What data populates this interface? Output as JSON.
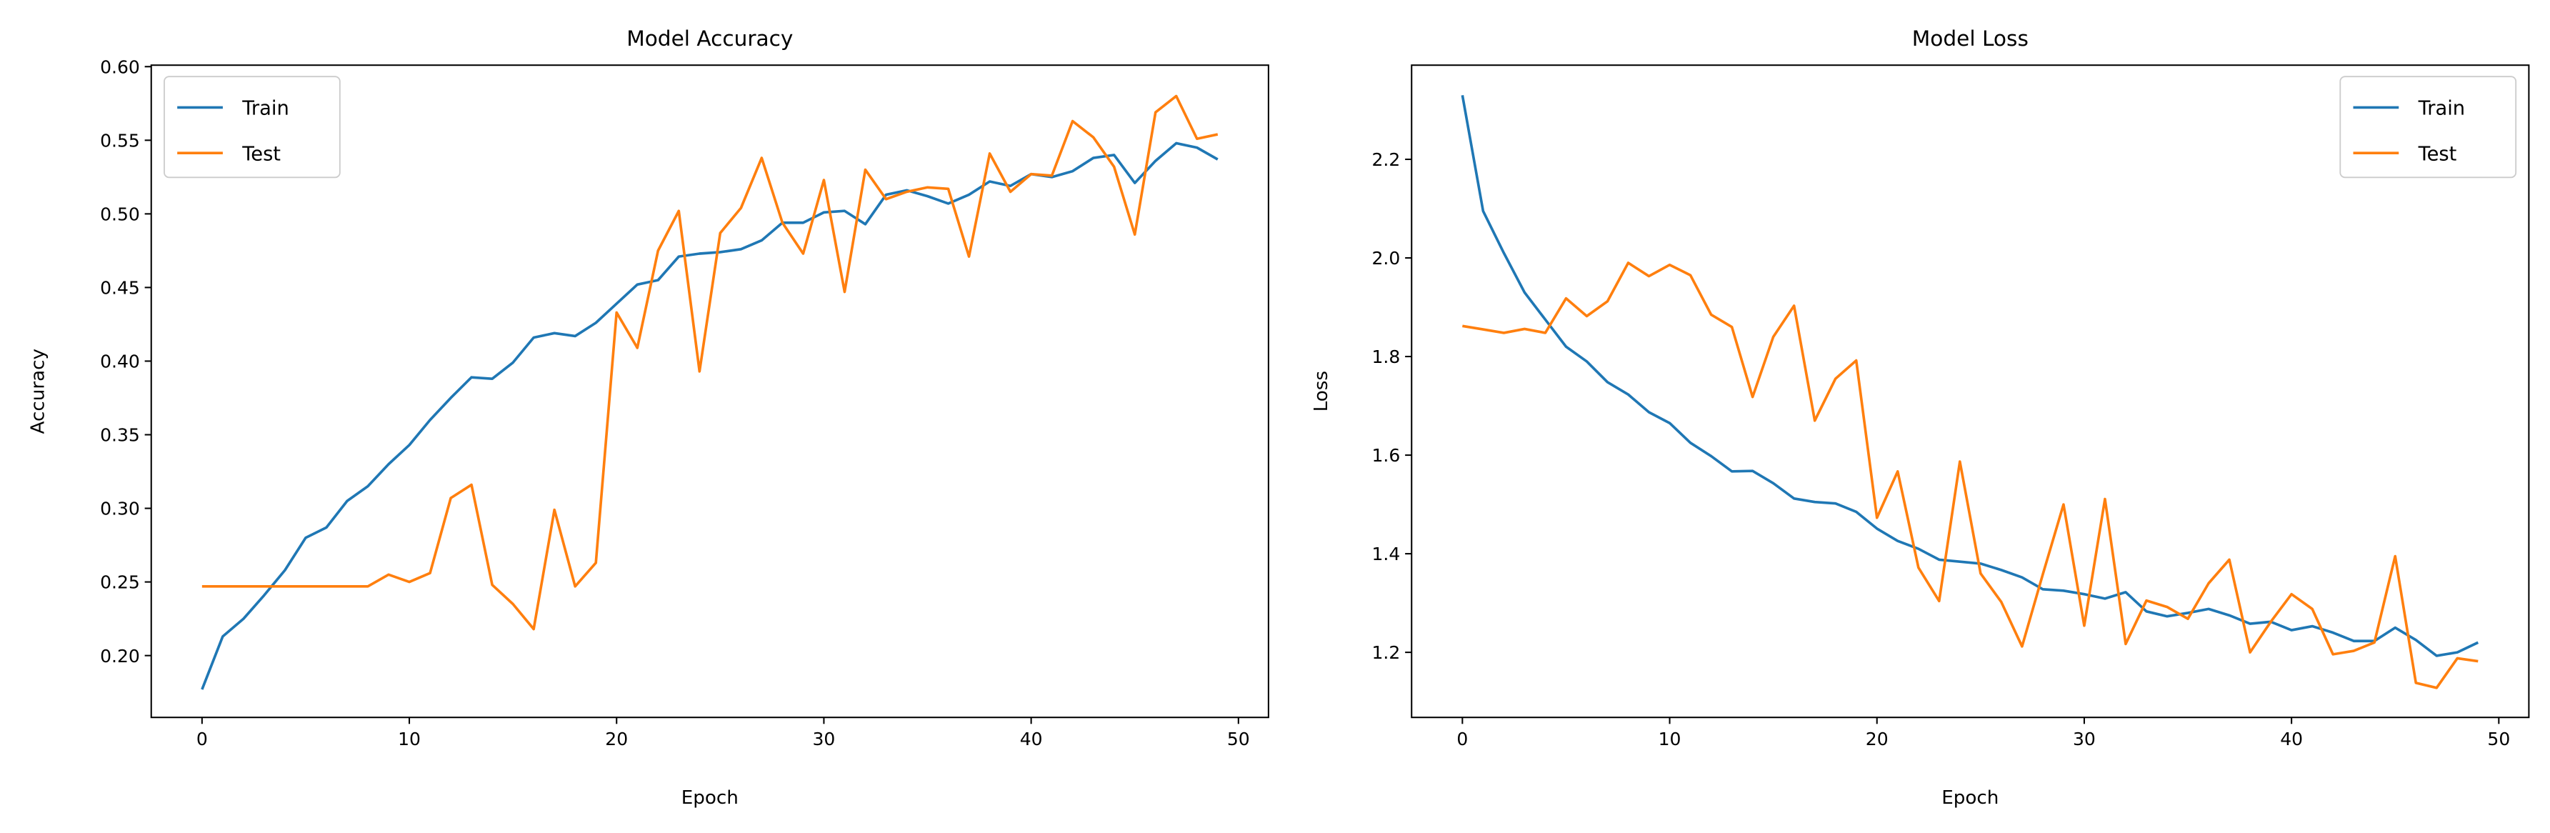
{
  "chart_data": [
    {
      "type": "line",
      "title": "Model Accuracy",
      "xlabel": "Epoch",
      "ylabel": "Accuracy",
      "xlim": [
        -2.45,
        51.45
      ],
      "ylim": [
        0.158,
        0.601
      ],
      "xticks": [
        0,
        10,
        20,
        30,
        40,
        50
      ],
      "yticks": [
        0.2,
        0.25,
        0.3,
        0.35,
        0.4,
        0.45,
        0.5,
        0.55,
        0.6
      ],
      "ytick_labels": [
        "0.20",
        "0.25",
        "0.30",
        "0.35",
        "0.40",
        "0.45",
        "0.50",
        "0.55",
        "0.60"
      ],
      "legend": "top-left",
      "grid": false,
      "series": [
        {
          "name": "Train",
          "color": "#1f77b4",
          "values": [
            0.177,
            0.213,
            0.225,
            0.241,
            0.258,
            0.28,
            0.287,
            0.305,
            0.315,
            0.33,
            0.343,
            0.36,
            0.375,
            0.389,
            0.388,
            0.399,
            0.416,
            0.419,
            0.417,
            0.426,
            0.439,
            0.452,
            0.455,
            0.471,
            0.473,
            0.474,
            0.476,
            0.482,
            0.494,
            0.494,
            0.501,
            0.502,
            0.493,
            0.513,
            0.516,
            0.512,
            0.507,
            0.513,
            0.522,
            0.519,
            0.527,
            0.525,
            0.529,
            0.538,
            0.54,
            0.521,
            0.536,
            0.548,
            0.545,
            0.537
          ]
        },
        {
          "name": "Test",
          "color": "#ff7f0e",
          "values": [
            0.247,
            0.247,
            0.247,
            0.247,
            0.247,
            0.247,
            0.247,
            0.247,
            0.247,
            0.255,
            0.25,
            0.256,
            0.307,
            0.316,
            0.248,
            0.235,
            0.218,
            0.299,
            0.247,
            0.263,
            0.433,
            0.409,
            0.475,
            0.502,
            0.393,
            0.487,
            0.504,
            0.538,
            0.494,
            0.473,
            0.523,
            0.447,
            0.53,
            0.51,
            0.515,
            0.518,
            0.517,
            0.471,
            0.541,
            0.515,
            0.527,
            0.526,
            0.563,
            0.552,
            0.532,
            0.486,
            0.569,
            0.58,
            0.551,
            0.554
          ]
        }
      ]
    },
    {
      "type": "line",
      "title": "Model Loss",
      "xlabel": "Epoch",
      "ylabel": "Loss",
      "xlim": [
        -2.45,
        51.45
      ],
      "ylim": [
        1.068,
        2.391
      ],
      "xticks": [
        0,
        10,
        20,
        30,
        40,
        50
      ],
      "yticks": [
        1.2,
        1.4,
        1.6,
        1.8,
        2.0,
        2.2
      ],
      "ytick_labels": [
        "1.2",
        "1.4",
        "1.6",
        "1.8",
        "2.0",
        "2.2"
      ],
      "legend": "top-right",
      "grid": false,
      "series": [
        {
          "name": "Train",
          "color": "#1f77b4",
          "values": [
            2.33,
            2.095,
            2.01,
            1.93,
            1.875,
            1.82,
            1.79,
            1.748,
            1.723,
            1.687,
            1.665,
            1.625,
            1.598,
            1.567,
            1.568,
            1.543,
            1.512,
            1.505,
            1.502,
            1.485,
            1.451,
            1.426,
            1.41,
            1.388,
            1.384,
            1.38,
            1.367,
            1.352,
            1.328,
            1.325,
            1.318,
            1.309,
            1.322,
            1.283,
            1.273,
            1.28,
            1.288,
            1.275,
            1.258,
            1.262,
            1.245,
            1.253,
            1.24,
            1.223,
            1.223,
            1.25,
            1.225,
            1.193,
            1.2,
            1.22
          ]
        },
        {
          "name": "Test",
          "color": "#ff7f0e",
          "values": [
            1.862,
            1.855,
            1.848,
            1.856,
            1.848,
            1.918,
            1.882,
            1.912,
            1.99,
            1.963,
            1.986,
            1.965,
            1.885,
            1.86,
            1.718,
            1.84,
            1.903,
            1.67,
            1.755,
            1.792,
            1.473,
            1.567,
            1.372,
            1.304,
            1.587,
            1.36,
            1.302,
            1.212,
            1.358,
            1.5,
            1.254,
            1.511,
            1.217,
            1.305,
            1.292,
            1.268,
            1.34,
            1.388,
            1.2,
            1.262,
            1.318,
            1.288,
            1.196,
            1.203,
            1.22,
            1.395,
            1.138,
            1.128,
            1.188,
            1.182
          ]
        }
      ]
    }
  ]
}
